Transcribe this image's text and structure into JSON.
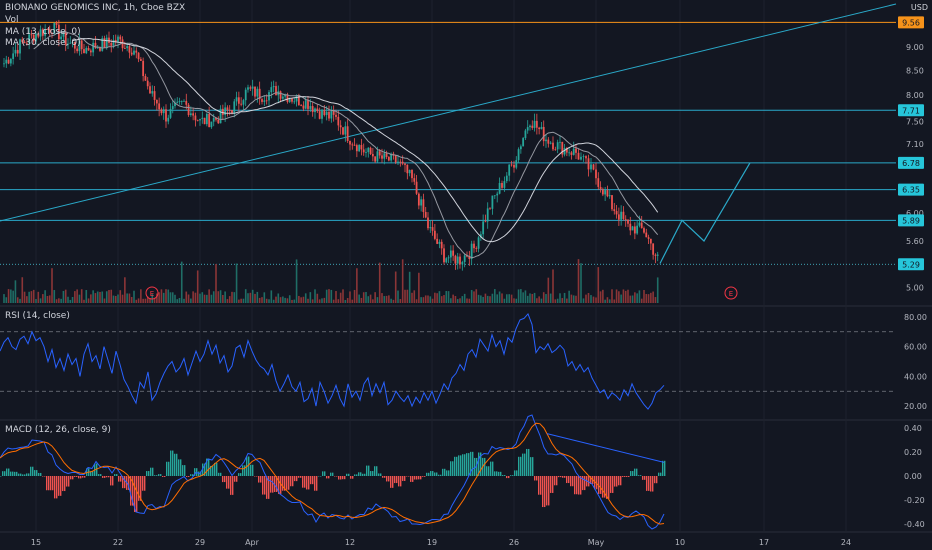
{
  "header": {
    "title": "BIONANO GENOMICS INC, 1h, Cboe BZX",
    "volume_label": "Vol",
    "ma1_label": "MA (13, close, 0)",
    "ma2_label": "MA (30, close, 0)",
    "currency": "USD"
  },
  "colors": {
    "background": "#131722",
    "up": "#26a69a",
    "down": "#ef5350",
    "ma": "#c8c8c8",
    "level_line": "#2aa9c9",
    "level_price_box": "#26c6da",
    "orange_line": "#f7931a",
    "rsi_line": "#2962ff",
    "macd_line": "#2962ff",
    "signal_line": "#ff6d00",
    "grid": "#1e222d",
    "earnings": "#f23645"
  },
  "chart_data": [
    {
      "type": "candlestick",
      "title": "BIONANO GENOMICS INC, 1h, Cboe BZX",
      "x_tick_labels": [
        "15",
        "22",
        "29",
        "Apr",
        "12",
        "19",
        "26",
        "May",
        "10",
        "17",
        "24"
      ],
      "y_tick_labels": [
        "9.50",
        "9.00",
        "8.50",
        "8.00",
        "7.50",
        "7.10",
        "6.80",
        "6.00",
        "5.60",
        "5.00"
      ],
      "y_scale": "log",
      "ylim": [
        4.8,
        10.0
      ],
      "price_labels": [
        "9.56",
        "7.71",
        "6.78",
        "6.35",
        "5.89",
        "5.29"
      ],
      "horizontal_levels": [
        7.71,
        6.78,
        6.35,
        5.89
      ],
      "resistance_line": 9.56,
      "last_price": 5.29,
      "trend_line": {
        "start": [
          "Mar 11",
          5.88
        ],
        "end": [
          "May 30",
          10.0
        ]
      },
      "projection_path": [
        [
          "May 7",
          5.3
        ],
        [
          "May 11",
          5.89
        ],
        [
          "May 13",
          5.6
        ],
        [
          "May 19",
          6.78
        ]
      ],
      "earnings_markers": [
        "Mar 19",
        "May 15"
      ],
      "earnings_label": "E",
      "ohlc_close_path": [
        [
          "Mar 11",
          8.65
        ],
        [
          "Mar 12",
          9.05
        ],
        [
          "Mar 15",
          9.3
        ],
        [
          "Mar 16",
          9.45
        ],
        [
          "Mar 17",
          9.1
        ],
        [
          "Mar 18",
          8.95
        ],
        [
          "Mar 19",
          9.05
        ],
        [
          "Mar 22",
          9.15
        ],
        [
          "Mar 23",
          8.95
        ],
        [
          "Mar 24",
          8.05
        ],
        [
          "Mar 25",
          7.6
        ],
        [
          "Mar 26",
          7.85
        ],
        [
          "Mar 29",
          7.5
        ],
        [
          "Mar 30",
          7.55
        ],
        [
          "Mar 31",
          7.75
        ],
        [
          "Apr 1",
          8.1
        ],
        [
          "Apr 2",
          8.0
        ],
        [
          "Apr 5",
          8.1
        ],
        [
          "Apr 6",
          7.95
        ],
        [
          "Apr 7",
          7.85
        ],
        [
          "Apr 8",
          7.65
        ],
        [
          "Apr 9",
          7.55
        ],
        [
          "Apr 12",
          7.2
        ],
        [
          "Apr 13",
          6.95
        ],
        [
          "Apr 14",
          6.85
        ],
        [
          "Apr 15",
          6.8
        ],
        [
          "Apr 16",
          6.5
        ],
        [
          "Apr 19",
          5.8
        ],
        [
          "Apr 20",
          5.4
        ],
        [
          "Apr 21",
          5.35
        ],
        [
          "Apr 22",
          5.5
        ],
        [
          "Apr 23",
          6.1
        ],
        [
          "Apr 26",
          6.8
        ],
        [
          "Apr 27",
          7.55
        ],
        [
          "Apr 28",
          7.2
        ],
        [
          "Apr 29",
          7.05
        ],
        [
          "Apr 30",
          6.95
        ],
        [
          "May 3",
          6.55
        ],
        [
          "May 4",
          6.1
        ],
        [
          "May 5",
          5.8
        ],
        [
          "May 6",
          5.75
        ],
        [
          "May 7",
          5.29
        ]
      ]
    },
    {
      "type": "line",
      "title": "RSI (14, close)",
      "y_tick_labels": [
        "80.00",
        "60.00",
        "40.00",
        "20.00"
      ],
      "ylim": [
        12,
        86
      ],
      "bands": [
        70,
        30
      ],
      "series": [
        {
          "values": [
            [
              0,
              57
            ],
            [
              4,
              63
            ],
            [
              8,
              66
            ],
            [
              12,
              60
            ],
            [
              16,
              58
            ],
            [
              20,
              65
            ],
            [
              24,
              67
            ],
            [
              28,
              62
            ],
            [
              32,
              70
            ],
            [
              36,
              64
            ],
            [
              40,
              66
            ],
            [
              44,
              60
            ],
            [
              48,
              50
            ],
            [
              52,
              58
            ],
            [
              56,
              46
            ],
            [
              60,
              52
            ],
            [
              64,
              44
            ],
            [
              68,
              55
            ],
            [
              72,
              48
            ],
            [
              76,
              52
            ],
            [
              80,
              40
            ],
            [
              84,
              55
            ],
            [
              88,
              62
            ],
            [
              92,
              50
            ],
            [
              96,
              54
            ],
            [
              100,
              45
            ],
            [
              104,
              60
            ],
            [
              108,
              51
            ],
            [
              112,
              42
            ],
            [
              116,
              57
            ],
            [
              120,
              48
            ],
            [
              124,
              38
            ],
            [
              128,
              33
            ],
            [
              132,
              27
            ],
            [
              136,
              22
            ],
            [
              140,
              36
            ],
            [
              144,
              32
            ],
            [
              148,
              43
            ],
            [
              152,
              24
            ],
            [
              156,
              28
            ],
            [
              160,
              36
            ],
            [
              164,
              42
            ],
            [
              168,
              47
            ],
            [
              172,
              50
            ],
            [
              176,
              43
            ],
            [
              180,
              46
            ],
            [
              184,
              52
            ],
            [
              188,
              41
            ],
            [
              192,
              49
            ],
            [
              196,
              57
            ],
            [
              200,
              50
            ],
            [
              204,
              55
            ],
            [
              208,
              64
            ],
            [
              212,
              55
            ],
            [
              216,
              61
            ],
            [
              220,
              49
            ],
            [
              224,
              54
            ],
            [
              228,
              43
            ],
            [
              232,
              47
            ],
            [
              236,
              59
            ],
            [
              240,
              61
            ],
            [
              244,
              53
            ],
            [
              248,
              64
            ],
            [
              252,
              57
            ],
            [
              256,
              51
            ],
            [
              260,
              47
            ],
            [
              264,
              45
            ],
            [
              268,
              41
            ],
            [
              272,
              48
            ],
            [
              276,
              37
            ],
            [
              280,
              30
            ],
            [
              284,
              35
            ],
            [
              288,
              41
            ],
            [
              292,
              33
            ],
            [
              296,
              30
            ],
            [
              300,
              36
            ],
            [
              304,
              23
            ],
            [
              308,
              25
            ],
            [
              312,
              32
            ],
            [
              316,
              20
            ],
            [
              320,
              36
            ],
            [
              324,
              30
            ],
            [
              328,
              22
            ],
            [
              332,
              27
            ],
            [
              336,
              34
            ],
            [
              340,
              25
            ],
            [
              344,
              20
            ],
            [
              348,
              35
            ],
            [
              352,
              26
            ],
            [
              356,
              30
            ],
            [
              360,
              24
            ],
            [
              364,
              35
            ],
            [
              368,
              39
            ],
            [
              372,
              27
            ],
            [
              376,
              35
            ],
            [
              380,
              29
            ],
            [
              384,
              36
            ],
            [
              388,
              21
            ],
            [
              392,
              24
            ],
            [
              396,
              30
            ],
            [
              400,
              26
            ],
            [
              404,
              23
            ],
            [
              408,
              27
            ],
            [
              412,
              20
            ],
            [
              416,
              26
            ],
            [
              420,
              22
            ],
            [
              424,
              29
            ],
            [
              428,
              24
            ],
            [
              432,
              30
            ],
            [
              436,
              22
            ],
            [
              440,
              28
            ],
            [
              444,
              35
            ],
            [
              448,
              31
            ],
            [
              452,
              39
            ],
            [
              456,
              42
            ],
            [
              460,
              48
            ],
            [
              464,
              44
            ],
            [
              468,
              55
            ],
            [
              472,
              58
            ],
            [
              476,
              53
            ],
            [
              480,
              65
            ],
            [
              484,
              61
            ],
            [
              488,
              57
            ],
            [
              492,
              68
            ],
            [
              496,
              60
            ],
            [
              500,
              64
            ],
            [
              504,
              55
            ],
            [
              508,
              66
            ],
            [
              512,
              63
            ],
            [
              516,
              72
            ],
            [
              520,
              78
            ],
            [
              524,
              79
            ],
            [
              528,
              82
            ],
            [
              532,
              75
            ],
            [
              536,
              56
            ],
            [
              540,
              60
            ],
            [
              544,
              58
            ],
            [
              548,
              62
            ],
            [
              552,
              56
            ],
            [
              556,
              58
            ],
            [
              560,
              61
            ],
            [
              564,
              58
            ],
            [
              568,
              47
            ],
            [
              572,
              50
            ],
            [
              576,
              44
            ],
            [
              580,
              48
            ],
            [
              584,
              43
            ],
            [
              588,
              46
            ],
            [
              592,
              39
            ],
            [
              596,
              34
            ],
            [
              600,
              29
            ],
            [
              604,
              31
            ],
            [
              608,
              25
            ],
            [
              612,
              29
            ],
            [
              616,
              27
            ],
            [
              620,
              24
            ],
            [
              624,
              31
            ],
            [
              628,
              27
            ],
            [
              632,
              35
            ],
            [
              636,
              29
            ],
            [
              640,
              25
            ],
            [
              644,
              21
            ],
            [
              648,
              18
            ],
            [
              652,
              22
            ],
            [
              656,
              29
            ],
            [
              660,
              31
            ],
            [
              664,
              34
            ]
          ]
        }
      ]
    },
    {
      "type": "line",
      "title": "MACD (12, 26, close, 9)",
      "y_tick_labels": [
        "0.40",
        "0.20",
        "0.00",
        "-0.20",
        "-0.40"
      ],
      "ylim": [
        -0.45,
        0.45
      ],
      "annotation_line": {
        "start": [
          547,
          0.52
        ],
        "end": [
          664,
          0.28
        ]
      }
    }
  ]
}
